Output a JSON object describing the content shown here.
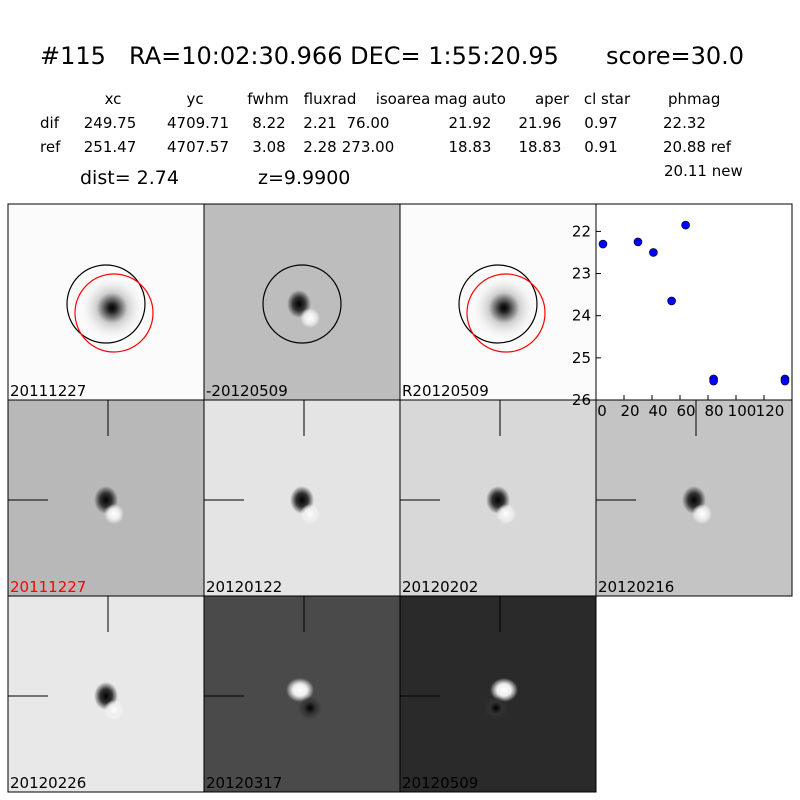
{
  "header": {
    "id": "#115",
    "coords": "RA=10:02:30.966 DEC= 1:55:20.95",
    "score": "score=30.0"
  },
  "table": {
    "columns": [
      "xc",
      "yc",
      "fwhm",
      "fluxrad",
      "isoarea",
      "mag auto",
      "aper",
      "cl star",
      "phmag"
    ],
    "rows": [
      [
        "dif",
        "249.75",
        "4709.71",
        "8.22",
        "2.21",
        "76.00",
        "21.92",
        "21.96",
        "0.97",
        "22.32"
      ],
      [
        "ref",
        "251.47",
        "4707.57",
        "3.08",
        "2.28",
        "273.00",
        "18.83",
        "18.83",
        "0.91",
        "20.88 ref"
      ]
    ],
    "extra": "20.11 new"
  },
  "dist": "dist=  2.74",
  "z": "z=9.9900",
  "panels": [
    {
      "label": "20111227",
      "color": "black"
    },
    {
      "label": "-20120509",
      "color": "black"
    },
    {
      "label": "R20120509",
      "color": "black"
    },
    {
      "label": "20111227",
      "color": "red"
    },
    {
      "label": "20120122",
      "color": "black"
    },
    {
      "label": "20120202",
      "color": "black"
    },
    {
      "label": "20120216",
      "color": "black"
    },
    {
      "label": "20120226",
      "color": "black"
    },
    {
      "label": "20120317",
      "color": "black"
    },
    {
      "label": "20120509",
      "color": "black"
    }
  ],
  "chart_data": {
    "type": "scatter",
    "x": [
      5,
      30,
      41,
      54,
      64,
      84,
      84,
      135,
      135
    ],
    "values": [
      22.3,
      22.25,
      22.5,
      23.65,
      21.85,
      25.5,
      25.55,
      25.5,
      25.55
    ],
    "color": "#0000ff",
    "xlim": [
      0,
      140
    ],
    "xticks": [
      0,
      20,
      40,
      60,
      80,
      100,
      120
    ],
    "ylim": [
      26,
      21.35
    ],
    "yticks": [
      22,
      23,
      24,
      25,
      26
    ]
  }
}
